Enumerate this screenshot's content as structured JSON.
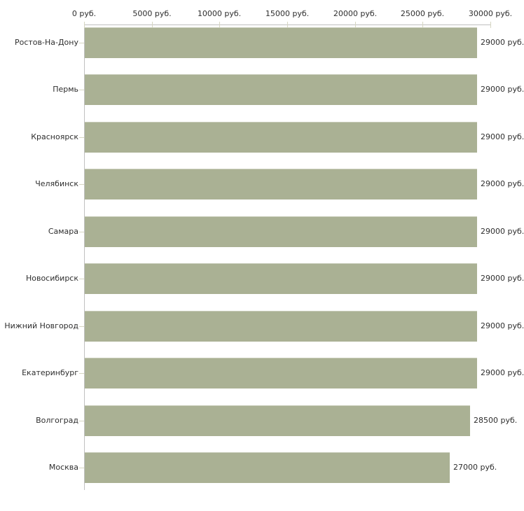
{
  "chart_data": {
    "type": "bar",
    "orientation": "horizontal",
    "title": "",
    "xlabel": "",
    "ylabel": "",
    "unit": "руб.",
    "categories": [
      "Ростов-На-Дону",
      "Пермь",
      "Красноярск",
      "Челябинск",
      "Самара",
      "Новосибирск",
      "Нижний Новгород",
      "Екатеринбург",
      "Волгоград",
      "Москва"
    ],
    "values": [
      29000,
      29000,
      29000,
      29000,
      29000,
      29000,
      29000,
      29000,
      28500,
      27000
    ],
    "value_labels": [
      "29000 руб.",
      "29000 руб.",
      "29000 руб.",
      "29000 руб.",
      "29000 руб.",
      "29000 руб.",
      "29000 руб.",
      "29000 руб.",
      "28500 руб.",
      "27000 руб."
    ],
    "x_ticks": [
      0,
      5000,
      10000,
      15000,
      20000,
      25000,
      30000
    ],
    "x_tick_labels": [
      "0 руб.",
      "5000 руб.",
      "10000 руб.",
      "15000 руб.",
      "20000 руб.",
      "25000 руб.",
      "30000 руб."
    ],
    "xlim": [
      0,
      30000
    ],
    "grid": false,
    "legend": null,
    "colors": {
      "bar_fill": "#aab194",
      "bar_top_edge": "#c9cdbb",
      "axis_line": "#c0c0c0",
      "tick_mark": "#d6d6c2",
      "text": "#2e2e2e",
      "background": "#ffffff"
    }
  }
}
